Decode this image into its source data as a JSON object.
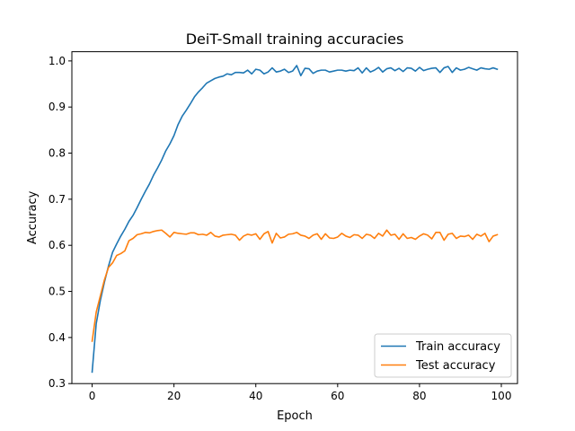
{
  "chart_data": {
    "type": "line",
    "title": "DeiT-Small training accuracies",
    "xlabel": "Epoch",
    "ylabel": "Accuracy",
    "xlim": [
      -4.95,
      103.95
    ],
    "ylim": [
      0.3,
      1.02
    ],
    "xticks": [
      0,
      20,
      40,
      60,
      80,
      100
    ],
    "yticks": [
      0.3,
      0.4,
      0.5,
      0.6,
      0.7,
      0.8,
      0.9,
      1.0
    ],
    "grid": false,
    "legend_position": "lower-right",
    "series": [
      {
        "name": "Train accuracy",
        "color": "#1f77b4",
        "x": [
          0,
          1,
          2,
          3,
          4,
          5,
          6,
          7,
          8,
          9,
          10,
          11,
          12,
          13,
          14,
          15,
          16,
          17,
          18,
          19,
          20,
          21,
          22,
          23,
          24,
          25,
          26,
          27,
          28,
          29,
          30,
          31,
          32,
          33,
          34,
          35,
          36,
          37,
          38,
          39,
          40,
          41,
          42,
          43,
          44,
          45,
          46,
          47,
          48,
          49,
          50,
          51,
          52,
          53,
          54,
          55,
          56,
          57,
          58,
          59,
          60,
          61,
          62,
          63,
          64,
          65,
          66,
          67,
          68,
          69,
          70,
          71,
          72,
          73,
          74,
          75,
          76,
          77,
          78,
          79,
          80,
          81,
          82,
          83,
          84,
          85,
          86,
          87,
          88,
          89,
          90,
          91,
          92,
          93,
          94,
          95,
          96,
          97,
          98,
          99
        ],
        "values": [
          0.325,
          0.43,
          0.48,
          0.52,
          0.555,
          0.585,
          0.603,
          0.62,
          0.635,
          0.652,
          0.665,
          0.682,
          0.7,
          0.717,
          0.733,
          0.752,
          0.768,
          0.785,
          0.805,
          0.82,
          0.838,
          0.862,
          0.88,
          0.893,
          0.907,
          0.922,
          0.933,
          0.942,
          0.952,
          0.957,
          0.962,
          0.965,
          0.967,
          0.972,
          0.97,
          0.975,
          0.975,
          0.974,
          0.98,
          0.972,
          0.982,
          0.98,
          0.972,
          0.976,
          0.985,
          0.976,
          0.978,
          0.982,
          0.975,
          0.978,
          0.99,
          0.968,
          0.984,
          0.983,
          0.973,
          0.978,
          0.98,
          0.98,
          0.976,
          0.978,
          0.98,
          0.98,
          0.978,
          0.98,
          0.979,
          0.985,
          0.974,
          0.985,
          0.976,
          0.98,
          0.986,
          0.976,
          0.983,
          0.985,
          0.979,
          0.984,
          0.977,
          0.985,
          0.984,
          0.978,
          0.986,
          0.979,
          0.982,
          0.984,
          0.985,
          0.975,
          0.985,
          0.988,
          0.975,
          0.985,
          0.98,
          0.982,
          0.986,
          0.983,
          0.98,
          0.985,
          0.983,
          0.982,
          0.985,
          0.982
        ]
      },
      {
        "name": "Test accuracy",
        "color": "#ff7f0e",
        "x": [
          0,
          1,
          2,
          3,
          4,
          5,
          6,
          7,
          8,
          9,
          10,
          11,
          12,
          13,
          14,
          15,
          16,
          17,
          18,
          19,
          20,
          21,
          22,
          23,
          24,
          25,
          26,
          27,
          28,
          29,
          30,
          31,
          32,
          33,
          34,
          35,
          36,
          37,
          38,
          39,
          40,
          41,
          42,
          43,
          44,
          45,
          46,
          47,
          48,
          49,
          50,
          51,
          52,
          53,
          54,
          55,
          56,
          57,
          58,
          59,
          60,
          61,
          62,
          63,
          64,
          65,
          66,
          67,
          68,
          69,
          70,
          71,
          72,
          73,
          74,
          75,
          76,
          77,
          78,
          79,
          80,
          81,
          82,
          83,
          84,
          85,
          86,
          87,
          88,
          89,
          90,
          91,
          92,
          93,
          94,
          95,
          96,
          97,
          98,
          99
        ],
        "values": [
          0.392,
          0.455,
          0.49,
          0.525,
          0.552,
          0.562,
          0.578,
          0.582,
          0.588,
          0.61,
          0.615,
          0.623,
          0.625,
          0.628,
          0.627,
          0.63,
          0.632,
          0.633,
          0.626,
          0.618,
          0.628,
          0.626,
          0.625,
          0.624,
          0.627,
          0.627,
          0.623,
          0.624,
          0.622,
          0.628,
          0.62,
          0.618,
          0.622,
          0.623,
          0.624,
          0.622,
          0.611,
          0.62,
          0.624,
          0.622,
          0.625,
          0.613,
          0.625,
          0.63,
          0.605,
          0.626,
          0.616,
          0.618,
          0.624,
          0.625,
          0.628,
          0.622,
          0.62,
          0.615,
          0.622,
          0.625,
          0.613,
          0.625,
          0.616,
          0.615,
          0.618,
          0.626,
          0.62,
          0.617,
          0.623,
          0.622,
          0.615,
          0.624,
          0.622,
          0.615,
          0.626,
          0.62,
          0.633,
          0.622,
          0.624,
          0.613,
          0.625,
          0.615,
          0.617,
          0.613,
          0.62,
          0.625,
          0.622,
          0.614,
          0.628,
          0.628,
          0.611,
          0.624,
          0.626,
          0.615,
          0.62,
          0.619,
          0.622,
          0.613,
          0.624,
          0.62,
          0.626,
          0.608,
          0.62,
          0.623
        ]
      }
    ]
  }
}
